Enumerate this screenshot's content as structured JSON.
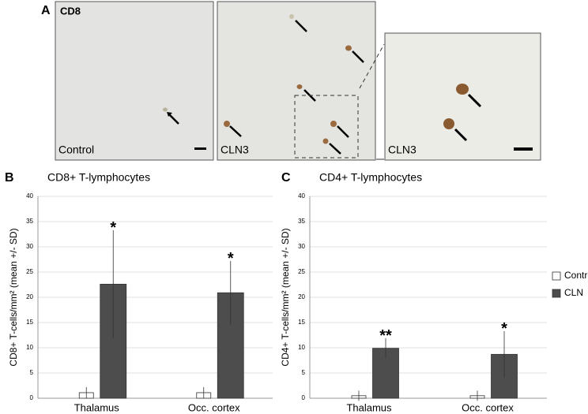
{
  "figure": {
    "panel_a": "A",
    "panel_b": "B",
    "panel_c": "C",
    "stain": "CD8",
    "image_1": "Control",
    "image_2": "CLN3",
    "image_3": "CLN3"
  },
  "chart_data": [
    {
      "type": "bar",
      "title": "CD8+ T-lymphocytes",
      "y_label": "CD8+ T-cells/mm² (mean +/- SD)",
      "categories": [
        "Thalamus",
        "Occ. cortex"
      ],
      "series": [
        {
          "name": "Control",
          "color": "#ffffff",
          "values": [
            1.1,
            1.1
          ],
          "errors": [
            1.1,
            1.1
          ]
        },
        {
          "name": "CLN",
          "color": "#4d4d4d",
          "values": [
            22.6,
            20.9
          ],
          "errors": [
            10.7,
            6.3
          ],
          "significance": [
            "*",
            "*"
          ]
        }
      ],
      "ylim": [
        0,
        40
      ],
      "yticks": [
        0,
        5,
        10,
        15,
        20,
        25,
        30,
        35,
        40
      ],
      "grid": true
    },
    {
      "type": "bar",
      "title": "CD4+ T-lymphocytes",
      "y_label": "CD4+ T-cells/mm² (mean +/- SD)",
      "categories": [
        "Thalamus",
        "Occ. cortex"
      ],
      "series": [
        {
          "name": "Control",
          "color": "#ffffff",
          "values": [
            0.5,
            0.5
          ],
          "errors": [
            1.0,
            1.0
          ]
        },
        {
          "name": "CLN",
          "color": "#4d4d4d",
          "values": [
            9.9,
            8.7
          ],
          "errors": [
            2.0,
            4.6
          ],
          "significance": [
            "**",
            "*"
          ]
        }
      ],
      "ylim": [
        0,
        40
      ],
      "yticks": [
        0,
        5,
        10,
        15,
        20,
        25,
        30,
        35,
        40
      ],
      "grid": true,
      "legend": "right"
    }
  ]
}
